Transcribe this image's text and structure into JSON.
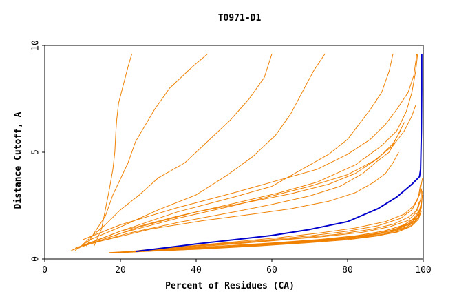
{
  "chart_data": {
    "type": "line",
    "title": "T0971-D1",
    "xlabel": "Percent of Residues (CA)",
    "ylabel": "Distance Cutoff, A",
    "xlim": [
      0,
      100
    ],
    "ylim": [
      0,
      10
    ],
    "x_ticks": [
      "0",
      "20",
      "40",
      "60",
      "80",
      "100"
    ],
    "y_ticks": [
      "0",
      "5",
      "10"
    ],
    "grid": false,
    "legend": "none",
    "colors": {
      "other": "#f08000",
      "highlight": "#0000cc"
    },
    "highlight": {
      "points": [
        [
          24,
          0.35
        ],
        [
          40,
          0.7
        ],
        [
          60,
          1.1
        ],
        [
          70,
          1.38
        ],
        [
          80,
          1.75
        ],
        [
          88,
          2.35
        ],
        [
          93,
          2.9
        ],
        [
          97,
          3.5
        ],
        [
          99,
          3.85
        ],
        [
          99.3,
          4.2
        ],
        [
          99.5,
          6
        ],
        [
          99.6,
          8
        ],
        [
          99.6,
          9.6
        ]
      ]
    },
    "series": [
      {
        "points": [
          [
            13,
            0.6
          ],
          [
            15,
            1.4
          ],
          [
            16,
            2.3
          ],
          [
            17,
            3.2
          ],
          [
            18,
            4.2
          ],
          [
            18.5,
            5
          ],
          [
            18.8,
            6
          ],
          [
            19,
            6.5
          ],
          [
            19.5,
            7.3
          ],
          [
            22,
            9
          ],
          [
            23,
            9.6
          ]
        ]
      },
      {
        "points": [
          [
            11,
            0.6
          ],
          [
            13,
            1.2
          ],
          [
            16,
            2
          ],
          [
            18,
            3
          ],
          [
            22,
            4.5
          ],
          [
            24,
            5.5
          ],
          [
            29,
            7
          ],
          [
            33,
            8
          ],
          [
            39,
            9
          ],
          [
            43,
            9.6
          ]
        ]
      },
      {
        "points": [
          [
            9,
            0.5
          ],
          [
            12,
            1
          ],
          [
            16,
            1.6
          ],
          [
            20,
            2.3
          ],
          [
            25,
            3
          ],
          [
            30,
            3.8
          ],
          [
            37,
            4.5
          ],
          [
            43,
            5.5
          ],
          [
            49,
            6.5
          ],
          [
            54,
            7.5
          ],
          [
            58,
            8.5
          ],
          [
            60,
            9.6
          ]
        ]
      },
      {
        "points": [
          [
            8,
            0.4
          ],
          [
            12,
            0.9
          ],
          [
            20,
            1.5
          ],
          [
            30,
            2.3
          ],
          [
            40,
            3
          ],
          [
            48,
            3.9
          ],
          [
            55,
            4.8
          ],
          [
            61,
            5.8
          ],
          [
            65,
            6.8
          ],
          [
            68,
            7.8
          ],
          [
            71,
            8.8
          ],
          [
            74,
            9.6
          ]
        ]
      },
      {
        "points": [
          [
            10,
            0.6
          ],
          [
            20,
            1.3
          ],
          [
            35,
            2.2
          ],
          [
            50,
            2.9
          ],
          [
            60,
            3.4
          ],
          [
            65,
            3.9
          ],
          [
            70,
            4.4
          ],
          [
            75,
            4.9
          ],
          [
            80,
            5.6
          ],
          [
            83,
            6.3
          ],
          [
            86,
            7
          ],
          [
            89,
            7.8
          ],
          [
            91,
            8.8
          ],
          [
            92,
            9.6
          ]
        ]
      },
      {
        "points": [
          [
            10,
            0.9
          ],
          [
            20,
            1.6
          ],
          [
            35,
            2.4
          ],
          [
            50,
            3.1
          ],
          [
            62,
            3.7
          ],
          [
            72,
            4.2
          ],
          [
            80,
            4.9
          ],
          [
            86,
            5.6
          ],
          [
            90,
            6.3
          ],
          [
            93,
            7
          ],
          [
            96,
            7.8
          ],
          [
            97.5,
            8.6
          ],
          [
            98.3,
            9.6
          ]
        ]
      },
      {
        "points": [
          [
            8,
            0.5
          ],
          [
            20,
            1.3
          ],
          [
            35,
            2
          ],
          [
            50,
            2.6
          ],
          [
            62,
            3.1
          ],
          [
            72,
            3.6
          ],
          [
            82,
            4.4
          ],
          [
            89,
            5.3
          ],
          [
            93,
            6
          ],
          [
            95.5,
            6.9
          ],
          [
            97,
            7.8
          ],
          [
            98,
            8.8
          ],
          [
            98.5,
            9.6
          ]
        ]
      },
      {
        "points": [
          [
            7,
            0.4
          ],
          [
            20,
            1.2
          ],
          [
            35,
            1.9
          ],
          [
            50,
            2.5
          ],
          [
            60,
            2.95
          ],
          [
            70,
            3.4
          ],
          [
            80,
            3.95
          ],
          [
            87,
            4.6
          ],
          [
            92,
            5.3
          ],
          [
            95,
            6
          ],
          [
            97,
            6.7
          ],
          [
            98,
            7.2
          ]
        ]
      },
      {
        "points": [
          [
            12,
            0.7
          ],
          [
            25,
            1.5
          ],
          [
            40,
            2.2
          ],
          [
            55,
            2.7
          ],
          [
            65,
            3.05
          ],
          [
            75,
            3.5
          ],
          [
            82,
            4
          ],
          [
            88,
            4.7
          ],
          [
            92,
            5.4
          ],
          [
            94,
            6
          ]
        ]
      },
      {
        "points": [
          [
            10,
            0.6
          ],
          [
            22,
            1.2
          ],
          [
            35,
            1.7
          ],
          [
            50,
            2.2
          ],
          [
            60,
            2.55
          ],
          [
            70,
            2.95
          ],
          [
            78,
            3.4
          ],
          [
            84,
            4
          ],
          [
            88,
            4.6
          ],
          [
            91,
            5
          ],
          [
            93,
            5.7
          ],
          [
            95,
            6.4
          ]
        ]
      },
      {
        "points": [
          [
            14,
            0.8
          ],
          [
            28,
            1.4
          ],
          [
            42,
            1.8
          ],
          [
            55,
            2.1
          ],
          [
            65,
            2.35
          ],
          [
            75,
            2.7
          ],
          [
            82,
            3.1
          ],
          [
            87,
            3.6
          ],
          [
            90,
            4
          ],
          [
            92,
            4.5
          ],
          [
            93.5,
            5
          ]
        ]
      },
      {
        "points": [
          [
            20,
            0.3
          ],
          [
            35,
            0.55
          ],
          [
            50,
            0.8
          ],
          [
            62,
            1
          ],
          [
            72,
            1.2
          ],
          [
            82,
            1.45
          ],
          [
            90,
            1.75
          ],
          [
            95,
            2.1
          ],
          [
            97.5,
            2.5
          ],
          [
            99,
            3
          ],
          [
            99.5,
            3.5
          ],
          [
            99.8,
            3.8
          ]
        ]
      },
      {
        "points": [
          [
            22,
            0.35
          ],
          [
            40,
            0.6
          ],
          [
            55,
            0.8
          ],
          [
            67,
            0.98
          ],
          [
            77,
            1.15
          ],
          [
            86,
            1.38
          ],
          [
            92,
            1.62
          ],
          [
            96,
            1.95
          ],
          [
            98.5,
            2.3
          ],
          [
            99.3,
            2.8
          ],
          [
            99.6,
            3.3
          ]
        ]
      },
      {
        "points": [
          [
            18,
            0.3
          ],
          [
            35,
            0.5
          ],
          [
            50,
            0.7
          ],
          [
            62,
            0.88
          ],
          [
            74,
            1.05
          ],
          [
            84,
            1.25
          ],
          [
            91,
            1.5
          ],
          [
            96,
            1.8
          ],
          [
            98,
            2.15
          ],
          [
            99,
            2.7
          ]
        ]
      },
      {
        "points": [
          [
            25,
            0.4
          ],
          [
            42,
            0.65
          ],
          [
            58,
            0.88
          ],
          [
            70,
            1.08
          ],
          [
            80,
            1.3
          ],
          [
            88,
            1.55
          ],
          [
            94,
            1.9
          ],
          [
            97,
            2.3
          ],
          [
            98.6,
            2.8
          ],
          [
            99.3,
            3.5
          ]
        ]
      },
      {
        "points": [
          [
            17,
            0.3
          ],
          [
            33,
            0.45
          ],
          [
            50,
            0.6
          ],
          [
            65,
            0.78
          ],
          [
            78,
            0.95
          ],
          [
            87,
            1.15
          ],
          [
            93,
            1.4
          ],
          [
            97,
            1.7
          ],
          [
            98.5,
            2.05
          ],
          [
            99.3,
            2.4
          ]
        ]
      },
      {
        "points": [
          [
            23,
            0.35
          ],
          [
            40,
            0.5
          ],
          [
            56,
            0.68
          ],
          [
            70,
            0.86
          ],
          [
            81,
            1.05
          ],
          [
            89,
            1.28
          ],
          [
            94.5,
            1.55
          ],
          [
            97.5,
            1.9
          ],
          [
            99,
            2.3
          ],
          [
            99.6,
            2.7
          ]
        ]
      },
      {
        "points": [
          [
            20,
            0.3
          ],
          [
            38,
            0.48
          ],
          [
            55,
            0.65
          ],
          [
            68,
            0.82
          ],
          [
            80,
            1
          ],
          [
            88,
            1.2
          ],
          [
            94,
            1.45
          ],
          [
            97.3,
            1.75
          ],
          [
            98.8,
            2.1
          ]
        ]
      },
      {
        "points": [
          [
            28,
            0.4
          ],
          [
            44,
            0.58
          ],
          [
            60,
            0.75
          ],
          [
            73,
            0.92
          ],
          [
            83,
            1.1
          ],
          [
            90,
            1.32
          ],
          [
            95,
            1.6
          ],
          [
            98,
            1.95
          ],
          [
            99.4,
            2.35
          ],
          [
            99.8,
            3
          ]
        ]
      },
      {
        "points": [
          [
            21,
            0.3
          ],
          [
            37,
            0.45
          ],
          [
            53,
            0.62
          ],
          [
            66,
            0.78
          ],
          [
            78,
            0.95
          ],
          [
            86,
            1.12
          ],
          [
            92,
            1.35
          ],
          [
            96,
            1.65
          ],
          [
            98.4,
            2
          ],
          [
            99.5,
            2.45
          ]
        ]
      },
      {
        "points": [
          [
            30,
            0.4
          ],
          [
            46,
            0.55
          ],
          [
            61,
            0.72
          ],
          [
            74,
            0.88
          ],
          [
            84,
            1.05
          ],
          [
            91,
            1.25
          ],
          [
            95.5,
            1.5
          ],
          [
            98.2,
            1.82
          ],
          [
            99.4,
            2.2
          ]
        ]
      },
      {
        "points": [
          [
            19,
            0.3
          ],
          [
            36,
            0.42
          ],
          [
            52,
            0.58
          ],
          [
            66,
            0.74
          ],
          [
            78,
            0.9
          ],
          [
            87,
            1.06
          ],
          [
            93,
            1.25
          ],
          [
            96.8,
            1.52
          ],
          [
            98.7,
            1.85
          ],
          [
            99.5,
            2.25
          ]
        ]
      },
      {
        "points": [
          [
            26,
            0.35
          ],
          [
            42,
            0.5
          ],
          [
            58,
            0.66
          ],
          [
            71,
            0.82
          ],
          [
            82,
            0.98
          ],
          [
            89.5,
            1.16
          ],
          [
            94.5,
            1.4
          ],
          [
            97.6,
            1.7
          ],
          [
            99.1,
            2.05
          ]
        ]
      },
      {
        "points": [
          [
            33,
            0.4
          ],
          [
            50,
            0.58
          ],
          [
            65,
            0.76
          ],
          [
            77,
            0.94
          ],
          [
            86,
            1.12
          ],
          [
            92,
            1.33
          ],
          [
            96,
            1.6
          ],
          [
            98.6,
            1.95
          ],
          [
            99.5,
            2.4
          ],
          [
            99.7,
            3.2
          ]
        ]
      },
      {
        "points": [
          [
            24,
            0.35
          ],
          [
            40,
            0.45
          ],
          [
            56,
            0.6
          ],
          [
            69,
            0.75
          ],
          [
            80,
            0.9
          ],
          [
            88,
            1.08
          ],
          [
            93.6,
            1.3
          ],
          [
            97.2,
            1.6
          ],
          [
            99,
            2
          ]
        ]
      }
    ]
  }
}
